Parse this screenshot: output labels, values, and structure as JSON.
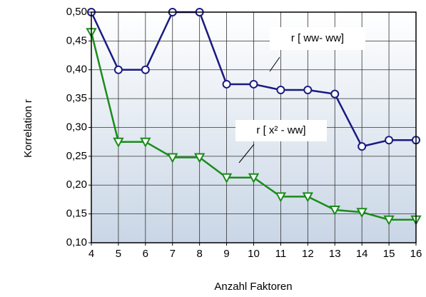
{
  "chart_data": {
    "type": "line",
    "x_label": "Anzahl Faktoren",
    "y_label": "Korrelation r",
    "x": [
      4,
      5,
      6,
      7,
      8,
      9,
      10,
      11,
      12,
      13,
      14,
      15,
      16
    ],
    "series": [
      {
        "name": "r [ ww- ww]",
        "color": "#1a1a80",
        "marker": "circle",
        "values": [
          0.5,
          0.4,
          0.4,
          0.5,
          0.5,
          0.375,
          0.375,
          0.365,
          0.365,
          0.358,
          0.267,
          0.278,
          0.278
        ]
      },
      {
        "name": "r [ x² - ww]",
        "color": "#1a8c1a",
        "marker": "triangle-down",
        "values": [
          0.465,
          0.275,
          0.275,
          0.248,
          0.248,
          0.213,
          0.213,
          0.18,
          0.18,
          0.157,
          0.153,
          0.14,
          0.14
        ]
      }
    ],
    "xlim": [
      4,
      16
    ],
    "xticks": [
      4,
      5,
      6,
      7,
      8,
      9,
      10,
      11,
      12,
      13,
      14,
      15,
      16
    ],
    "ylim": [
      0.1,
      0.5
    ],
    "yticks": [
      {
        "value": 0.1,
        "label": "0,10"
      },
      {
        "value": 0.15,
        "label": "0,15"
      },
      {
        "value": 0.2,
        "label": "0,20"
      },
      {
        "value": 0.25,
        "label": "0,25"
      },
      {
        "value": 0.3,
        "label": "0,30"
      },
      {
        "value": 0.35,
        "label": "0,35"
      },
      {
        "value": 0.4,
        "label": "0,40"
      },
      {
        "value": 0.45,
        "label": "0,45"
      },
      {
        "value": 0.5,
        "label": "0,50"
      }
    ],
    "grid": true
  }
}
